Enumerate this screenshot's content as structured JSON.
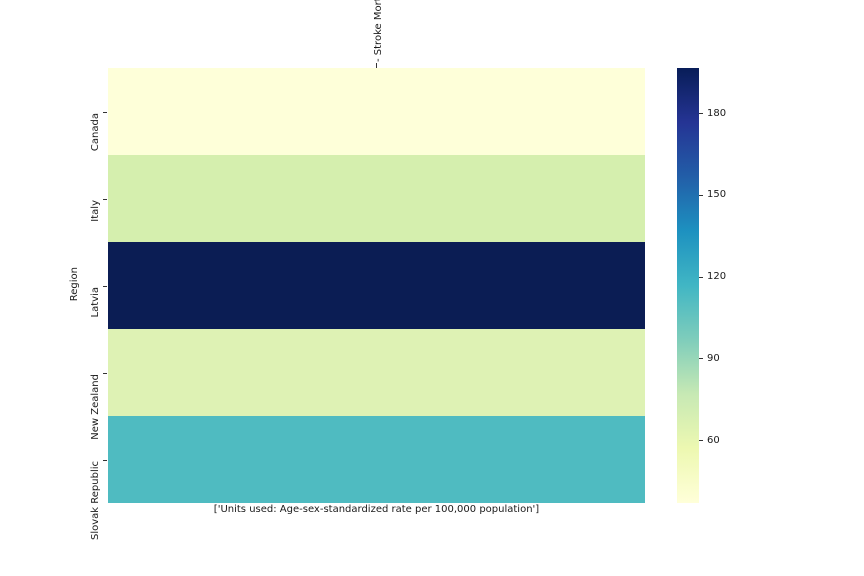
{
  "figure": {
    "background": "#ffffff",
    "text_color": "#1a1a1a"
  },
  "chart_data": {
    "type": "heatmap",
    "column_label": "- Stroke Morta",
    "ylabel": "Region",
    "caption": "['Units used: Age-sex-standardized rate per 100,000 population']",
    "categories": [
      "Canada",
      "Italy",
      "Latvia",
      "New Zealand",
      "Slovak Republic"
    ],
    "values": [
      37,
      66,
      196.5,
      62,
      112
    ],
    "cell_colors": [
      "#feffd9",
      "#d5efae",
      "#0b1d54",
      "#def2b4",
      "#4fbbc1"
    ],
    "grid": false,
    "legend_position": "right-colorbar",
    "colorbar": {
      "ticks": [
        180,
        150,
        120,
        90,
        60
      ],
      "vmin": 37,
      "vmax": 196.5,
      "colormap": "YlGnBu",
      "stops": [
        "#ffffd9",
        "#edf8b1",
        "#c7e9b4",
        "#7fcdbb",
        "#41b6c4",
        "#1d91c0",
        "#225ea8",
        "#253494",
        "#081d58"
      ]
    }
  }
}
